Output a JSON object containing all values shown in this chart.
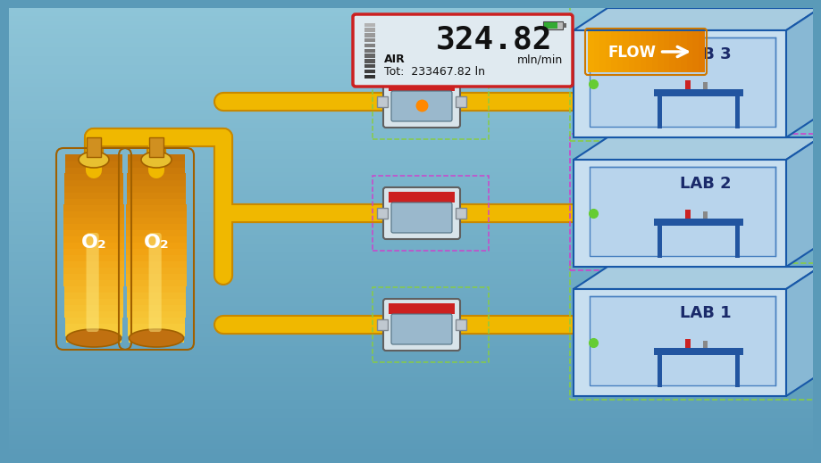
{
  "bg_top": "#8ec5d8",
  "bg_bottom": "#5a9ab8",
  "pipe_color": "#f0b800",
  "pipe_lw": 13,
  "pipe_edge_color": "#c88800",
  "cyl_fill_top": "#f8d040",
  "cyl_fill_mid": "#f0a010",
  "cyl_fill_bot": "#c07008",
  "cyl_edge": "#a06000",
  "lab_front": "#c8dff0",
  "lab_top": "#a8cce0",
  "lab_right": "#88b8d4",
  "lab_edge": "#1858a8",
  "lab_inner_front": "#b8d4ec",
  "lab_inner_edge": "#4880c0",
  "table_color": "#2255a0",
  "dot_color": "#66cc33",
  "meter_body": "#d8e4ea",
  "meter_red": "#cc2020",
  "meter_screen": "#9ab8cc",
  "meter_edge": "#606060",
  "dot_border_green": "#88cc44",
  "dot_border_purple": "#cc44cc",
  "disp_bg": "#e0eaf0",
  "disp_border": "#cc2020",
  "disp_value": "324.82",
  "disp_gas": "AIR",
  "disp_unit": "mln/min",
  "disp_tot": "Tot:  233467.82 ln",
  "flow_btn_color": "#f5a800",
  "flow_btn_arrow": "#ffffff",
  "lab_labels": [
    "LAB 1",
    "LAB 2",
    "LAB 3"
  ],
  "meter_box_colors": [
    "#88cc44",
    "#cc44cc",
    "#88cc44"
  ],
  "lab_box_colors": [
    "#88cc44",
    "#cc44cc",
    "#88cc44"
  ]
}
